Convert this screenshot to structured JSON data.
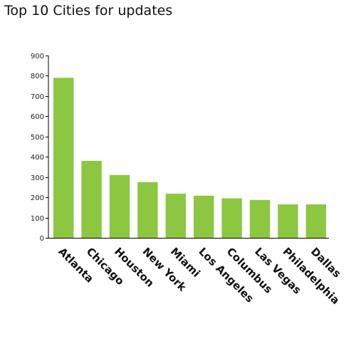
{
  "chart_data": {
    "type": "bar",
    "title": "Top 10 Cities for updates",
    "xlabel": "",
    "ylabel": "",
    "categories": [
      "Atlanta",
      "Chicago",
      "Houston",
      "New York",
      "Miami",
      "Los Angeles",
      "Columbus",
      "Las Vegas",
      "Philadelphia",
      "Dallas"
    ],
    "values": [
      790,
      380,
      310,
      275,
      218,
      208,
      195,
      187,
      165,
      165
    ],
    "ylim": [
      0,
      900
    ],
    "yticks": [
      0,
      100,
      200,
      300,
      400,
      500,
      600,
      700,
      800,
      900
    ],
    "grid": false,
    "legend": "none",
    "bar_color": "#8dc641"
  }
}
